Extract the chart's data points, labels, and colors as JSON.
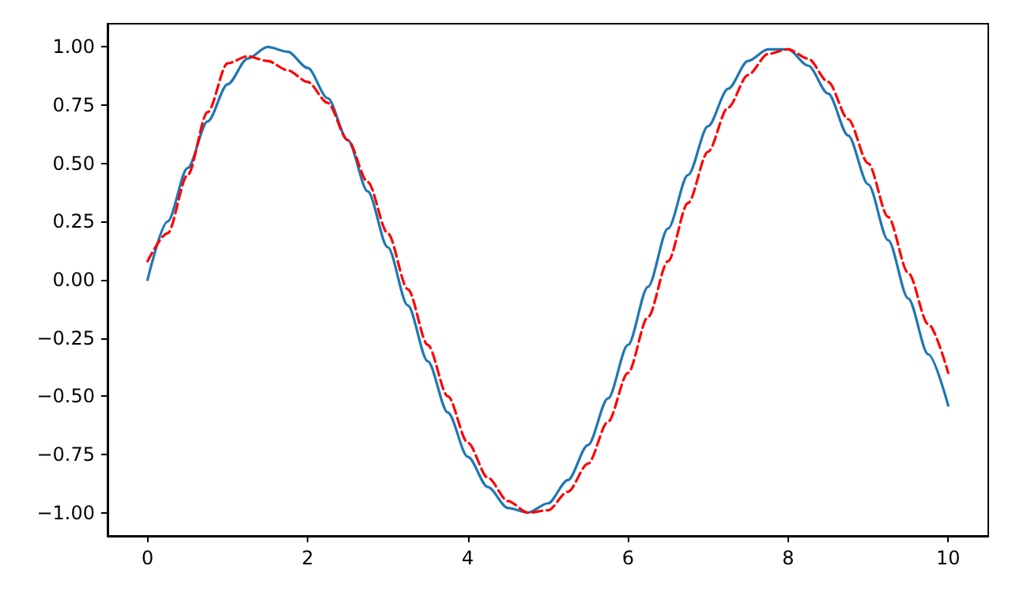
{
  "chart_data": {
    "type": "line",
    "grid": false,
    "marker": "none",
    "xlim": [
      -0.5,
      10.5
    ],
    "xticks": [
      0,
      2,
      4,
      6,
      8,
      10
    ],
    "ylim": [
      -1.1,
      1.1
    ],
    "yticks": [
      {
        "value": -1,
        "label": "−1.00"
      },
      {
        "value": -0.75,
        "label": "−0.75"
      },
      {
        "value": -0.5,
        "label": "−0.50"
      },
      {
        "value": -0.25,
        "label": "−0.25"
      },
      {
        "value": 0,
        "label": "0.00"
      },
      {
        "value": 0.25,
        "label": "0.25"
      },
      {
        "value": 0.5,
        "label": "0.50"
      },
      {
        "value": 0.75,
        "label": "0.75"
      },
      {
        "value": 1,
        "label": "1.00"
      }
    ],
    "x": [
      0,
      0.25,
      0.5,
      0.75,
      1,
      1.25,
      1.5,
      1.75,
      2,
      2.25,
      2.5,
      2.75,
      3,
      3.25,
      3.5,
      3.75,
      4,
      4.25,
      4.5,
      4.75,
      5,
      5.25,
      5.5,
      5.75,
      6,
      6.25,
      6.5,
      6.75,
      7,
      7.25,
      7.5,
      7.75,
      8,
      8.25,
      8.5,
      8.75,
      9,
      9.25,
      9.5,
      9.75,
      10
    ],
    "series": [
      {
        "color": "#1f77b4",
        "line_style": "solid",
        "values": [
          0,
          0.25,
          0.48,
          0.68,
          0.84,
          0.95,
          1.0,
          0.98,
          0.91,
          0.78,
          0.6,
          0.38,
          0.14,
          -0.11,
          -0.35,
          -0.57,
          -0.76,
          -0.89,
          -0.98,
          -1.0,
          -0.96,
          -0.86,
          -0.71,
          -0.51,
          -0.28,
          -0.03,
          0.22,
          0.45,
          0.66,
          0.82,
          0.94,
          0.99,
          0.99,
          0.92,
          0.8,
          0.62,
          0.41,
          0.17,
          -0.08,
          -0.32,
          -0.54
        ]
      },
      {
        "color": "#ff0000",
        "line_style": "dashed",
        "values": [
          0.08,
          0.2,
          0.45,
          0.72,
          0.93,
          0.96,
          0.94,
          0.9,
          0.85,
          0.76,
          0.6,
          0.42,
          0.2,
          -0.04,
          -0.28,
          -0.5,
          -0.7,
          -0.85,
          -0.95,
          -1.0,
          -0.99,
          -0.91,
          -0.79,
          -0.61,
          -0.4,
          -0.16,
          0.08,
          0.33,
          0.55,
          0.74,
          0.88,
          0.97,
          0.99,
          0.95,
          0.85,
          0.69,
          0.5,
          0.27,
          0.03,
          -0.19,
          -0.4
        ]
      }
    ]
  }
}
